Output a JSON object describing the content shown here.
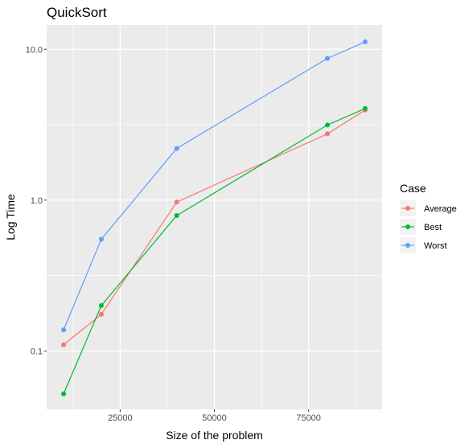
{
  "chart_data": {
    "type": "line",
    "title": "QuickSort",
    "xlabel": "Size of the problem",
    "ylabel": "Log Time",
    "y_scale": "log10",
    "xlim": [
      5500,
      94500
    ],
    "ylim": [
      0.041,
      14.5
    ],
    "x_ticks": [
      25000,
      50000,
      75000
    ],
    "x_tick_labels": [
      "25000",
      "50000",
      "75000"
    ],
    "y_ticks": [
      0.1,
      1.0,
      10.0
    ],
    "y_tick_labels": [
      "0.1",
      "1.0",
      "10.0"
    ],
    "grid": true,
    "legend": {
      "title": "Case",
      "position": "right"
    },
    "series": [
      {
        "name": "Average",
        "color": "#F8766D",
        "x": [
          10000,
          20000,
          40000,
          80000,
          90000
        ],
        "y": [
          0.11,
          0.175,
          0.97,
          2.75,
          3.95
        ]
      },
      {
        "name": "Best",
        "color": "#00BA38",
        "x": [
          10000,
          20000,
          40000,
          80000,
          90000
        ],
        "y": [
          0.052,
          0.2,
          0.79,
          3.15,
          4.05
        ]
      },
      {
        "name": "Worst",
        "color": "#619CFF",
        "x": [
          10000,
          20000,
          40000,
          80000,
          90000
        ],
        "y": [
          0.138,
          0.55,
          2.2,
          8.7,
          11.2
        ]
      }
    ]
  }
}
